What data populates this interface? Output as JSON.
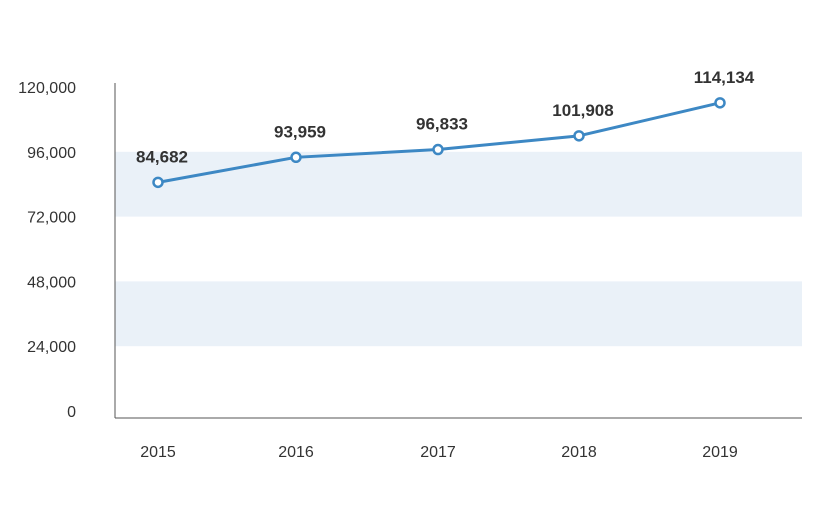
{
  "chart_data": {
    "type": "line",
    "categories": [
      "2015",
      "2016",
      "2017",
      "2018",
      "2019"
    ],
    "series": [
      {
        "values": [
          84682,
          93959,
          96833,
          101908,
          114134
        ],
        "labels": [
          "84,682",
          "93,959",
          "96,833",
          "101,908",
          "114,134"
        ]
      }
    ],
    "yticks": [
      0,
      24000,
      48000,
      72000,
      96000,
      120000
    ],
    "ytick_labels": [
      "0",
      "24,000",
      "48,000",
      "72,000",
      "96,000",
      "120,000"
    ],
    "ylim": [
      0,
      120000
    ],
    "title": "",
    "xlabel": "",
    "ylabel": "",
    "grid": "alternating horizontal bands",
    "legend": "none",
    "colors": {
      "line": "#3d88c4",
      "marker_fill": "#ffffff",
      "band": "#eaf1f8",
      "axis": "#555555",
      "text": "#333333"
    }
  }
}
